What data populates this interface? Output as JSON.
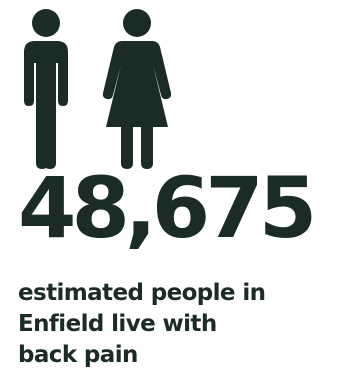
{
  "icons": {
    "man": "man-icon",
    "woman": "woman-icon",
    "color": "#1b2b27"
  },
  "stat": {
    "value": "48,675",
    "caption": "estimated people in\nEnfield live with\nback pain"
  }
}
